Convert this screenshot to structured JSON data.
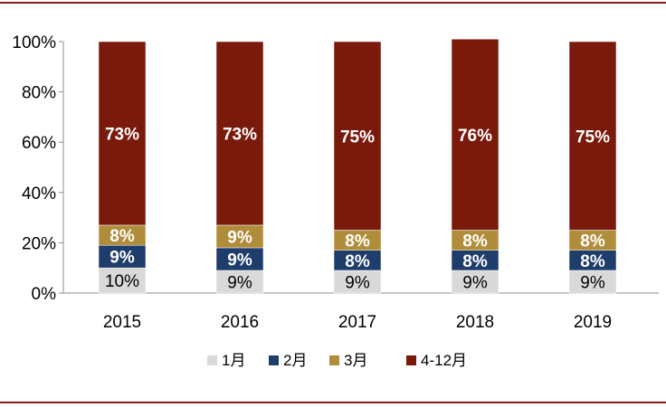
{
  "chart_data": {
    "type": "bar",
    "stacked": true,
    "categories": [
      "2015",
      "2016",
      "2017",
      "2018",
      "2019"
    ],
    "series": [
      {
        "name": "1月",
        "color": "#d9d9d9",
        "values": [
          10,
          9,
          9,
          9,
          9
        ],
        "labels": [
          "10%",
          "9%",
          "9%",
          "9%",
          "9%"
        ],
        "label_color": "#000000"
      },
      {
        "name": "2月",
        "color": "#1f3d6b",
        "values": [
          9,
          9,
          8,
          8,
          8
        ],
        "labels": [
          "9%",
          "9%",
          "8%",
          "8%",
          "8%"
        ],
        "label_color": "#ffffff"
      },
      {
        "name": "3月",
        "color": "#b08d3a",
        "values": [
          8,
          9,
          8,
          8,
          8
        ],
        "labels": [
          "8%",
          "9%",
          "8%",
          "8%",
          "8%"
        ],
        "label_color": "#ffffff"
      },
      {
        "name": "4-12月",
        "color": "#7a1a0c",
        "values": [
          73,
          73,
          75,
          76,
          75
        ],
        "labels": [
          "73%",
          "73%",
          "75%",
          "76%",
          "75%"
        ],
        "label_color": "#ffffff"
      }
    ],
    "y_ticks": [
      "0%",
      "20%",
      "40%",
      "60%",
      "80%",
      "100%"
    ],
    "ylim": [
      0,
      100
    ],
    "grid": false,
    "legend_position": "bottom",
    "title": "",
    "xlabel": "",
    "ylabel": ""
  }
}
